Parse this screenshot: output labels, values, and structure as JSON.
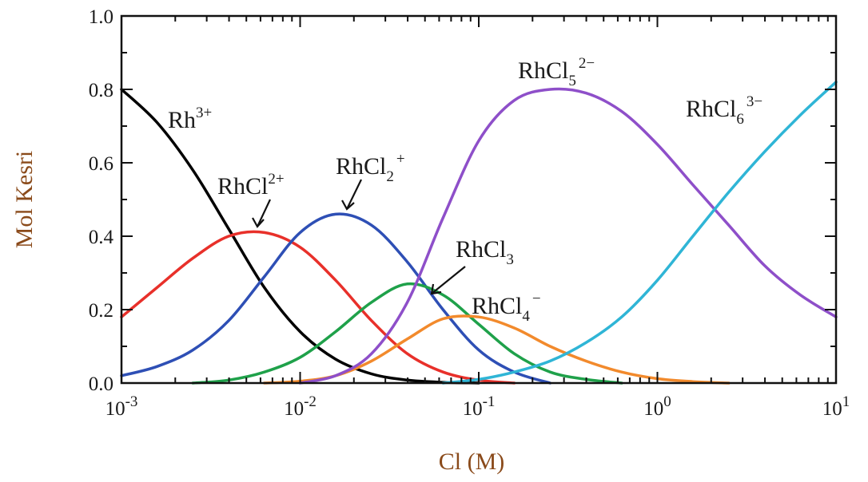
{
  "chart_data": {
    "type": "line",
    "xlabel": "Cl (M)",
    "ylabel": "Mol Kesri",
    "x_scale": "log",
    "xlim": [
      0.001,
      10
    ],
    "ylim": [
      0.0,
      1.0
    ],
    "x_ticks": [
      {
        "base": "10",
        "exp": "-3"
      },
      {
        "base": "10",
        "exp": "-2"
      },
      {
        "base": "10",
        "exp": "-1"
      },
      {
        "base": "10",
        "exp": "0"
      },
      {
        "base": "10",
        "exp": "1"
      }
    ],
    "y_ticks": [
      "0.0",
      "0.2",
      "0.4",
      "0.6",
      "0.8",
      "1.0"
    ],
    "grid": false,
    "series": [
      {
        "name": "Rh3+",
        "label_main": "Rh",
        "label_sub": "",
        "label_sup": "3+",
        "color": "#000000",
        "x": [
          0.001,
          0.00158,
          0.00251,
          0.00398,
          0.00631,
          0.01,
          0.0158,
          0.0251,
          0.0398,
          0.0631,
          0.1
        ],
        "y": [
          0.8,
          0.71,
          0.58,
          0.42,
          0.26,
          0.14,
          0.065,
          0.025,
          0.008,
          0.002,
          0.0
        ]
      },
      {
        "name": "RhCl2+",
        "label_main": "RhCl",
        "label_sub": "",
        "label_sup": "2+",
        "color": "#e8302a",
        "x": [
          0.001,
          0.00158,
          0.00251,
          0.00398,
          0.00631,
          0.01,
          0.0158,
          0.0251,
          0.0398,
          0.0631,
          0.1,
          0.158
        ],
        "y": [
          0.18,
          0.26,
          0.34,
          0.4,
          0.41,
          0.37,
          0.28,
          0.17,
          0.08,
          0.03,
          0.008,
          0.0
        ]
      },
      {
        "name": "RhCl2+",
        "label_main": "RhCl",
        "label_sub": "2",
        "label_sup": "+",
        "color": "#2e4fb5",
        "x": [
          0.001,
          0.00158,
          0.00251,
          0.00398,
          0.00631,
          0.01,
          0.0158,
          0.0251,
          0.0398,
          0.0631,
          0.1,
          0.158,
          0.251
        ],
        "y": [
          0.02,
          0.045,
          0.09,
          0.17,
          0.29,
          0.41,
          0.46,
          0.43,
          0.33,
          0.2,
          0.09,
          0.03,
          0.0
        ]
      },
      {
        "name": "RhCl3",
        "label_main": "RhCl",
        "label_sub": "3",
        "label_sup": "",
        "color": "#1fa14a",
        "x": [
          0.00251,
          0.00398,
          0.00631,
          0.01,
          0.0158,
          0.0251,
          0.0398,
          0.0631,
          0.1,
          0.158,
          0.251,
          0.398,
          0.631
        ],
        "y": [
          0.0,
          0.008,
          0.03,
          0.07,
          0.14,
          0.22,
          0.27,
          0.24,
          0.16,
          0.08,
          0.03,
          0.01,
          0.0
        ]
      },
      {
        "name": "RhCl4-",
        "label_main": "RhCl",
        "label_sub": "4",
        "label_sup": "−",
        "color": "#f28a2c",
        "x": [
          0.00631,
          0.01,
          0.0158,
          0.0251,
          0.0398,
          0.0631,
          0.1,
          0.158,
          0.251,
          0.398,
          0.631,
          1.0,
          1.58,
          2.51
        ],
        "y": [
          0.0,
          0.005,
          0.02,
          0.06,
          0.12,
          0.175,
          0.18,
          0.15,
          0.1,
          0.06,
          0.03,
          0.012,
          0.004,
          0.0
        ]
      },
      {
        "name": "RhCl52-",
        "label_main": "RhCl",
        "label_sub": "5",
        "label_sup": "2−",
        "color": "#8e4fc9",
        "x": [
          0.01,
          0.0158,
          0.0251,
          0.0398,
          0.0631,
          0.1,
          0.158,
          0.251,
          0.398,
          0.631,
          1.0,
          1.58,
          2.51,
          3.98,
          6.31,
          10
        ],
        "y": [
          0.0,
          0.02,
          0.08,
          0.22,
          0.45,
          0.66,
          0.77,
          0.8,
          0.79,
          0.74,
          0.65,
          0.54,
          0.43,
          0.32,
          0.24,
          0.18
        ]
      },
      {
        "name": "RhCl63-",
        "label_main": "RhCl",
        "label_sub": "6",
        "label_sup": "3−",
        "color": "#2fb5d6",
        "x": [
          0.0631,
          0.1,
          0.158,
          0.251,
          0.398,
          0.631,
          1.0,
          1.58,
          2.51,
          3.98,
          6.31,
          10
        ],
        "y": [
          0.0,
          0.01,
          0.03,
          0.06,
          0.11,
          0.18,
          0.28,
          0.4,
          0.52,
          0.63,
          0.73,
          0.82
        ]
      }
    ]
  }
}
